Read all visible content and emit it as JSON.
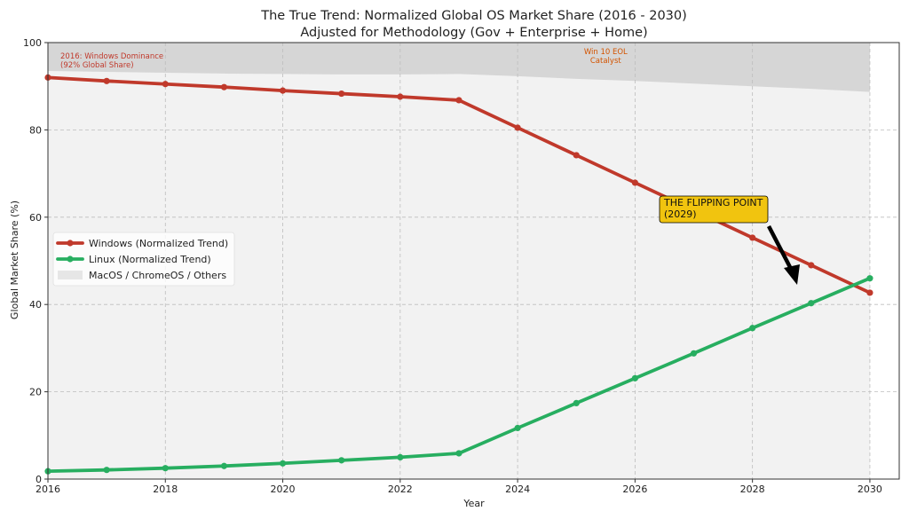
{
  "chart_data": {
    "type": "line",
    "title_line1": "The True Trend: Normalized Global OS Market Share (2016 - 2030)",
    "title_line2": "Adjusted for Methodology (Gov + Enterprise + Home)",
    "xlabel": "Year",
    "ylabel": "Global Market Share (%)",
    "xlim": [
      2016,
      2030.5
    ],
    "ylim": [
      0,
      100
    ],
    "x_ticks": [
      "2016",
      "2018",
      "2020",
      "2022",
      "2024",
      "2026",
      "2028",
      "2030"
    ],
    "y_ticks": [
      "0",
      "20",
      "40",
      "60",
      "80",
      "100"
    ],
    "grid": true,
    "legend_position": "center-left",
    "x": [
      2016,
      2017,
      2018,
      2019,
      2020,
      2021,
      2022,
      2023,
      2024,
      2025,
      2026,
      2027,
      2028,
      2029,
      2030
    ],
    "series": [
      {
        "name": "Windows (Normalized Trend)",
        "color": "#c0392b",
        "values": [
          92.0,
          91.2,
          90.5,
          89.8,
          89.0,
          88.3,
          87.6,
          86.8,
          80.5,
          74.2,
          67.9,
          61.6,
          55.3,
          49.0,
          42.7
        ]
      },
      {
        "name": "Linux (Normalized Trend)",
        "color": "#27ae60",
        "values": [
          1.8,
          2.1,
          2.5,
          3.0,
          3.6,
          4.3,
          5.0,
          5.9,
          11.7,
          17.4,
          23.1,
          28.8,
          34.6,
          40.3,
          46.0
        ]
      },
      {
        "name": "MacOS / ChromeOS / Others",
        "type": "area",
        "color": "#ececec",
        "top_values": [
          93.5,
          93.3,
          93.1,
          92.9,
          92.8,
          92.7,
          92.7,
          92.8,
          92.3,
          91.7,
          91.2,
          90.6,
          90.0,
          89.4,
          88.7
        ]
      }
    ],
    "highlight_band": {
      "x_from": 2025,
      "x_to": 2026,
      "color": "#f0cf8f"
    },
    "annotations": [
      {
        "id": "dominance",
        "lines": [
          "2016: Windows Dominance",
          "(92% Global Share)"
        ],
        "color": "#c0392b"
      },
      {
        "id": "eol",
        "lines": [
          "Win 10 EOL",
          "Catalyst"
        ],
        "color": "#d35400"
      },
      {
        "id": "flip",
        "lines": [
          "THE FLIPPING POINT",
          "(2029)"
        ],
        "box_color": "#f1c40f",
        "arrow_color": "#000000"
      }
    ]
  }
}
